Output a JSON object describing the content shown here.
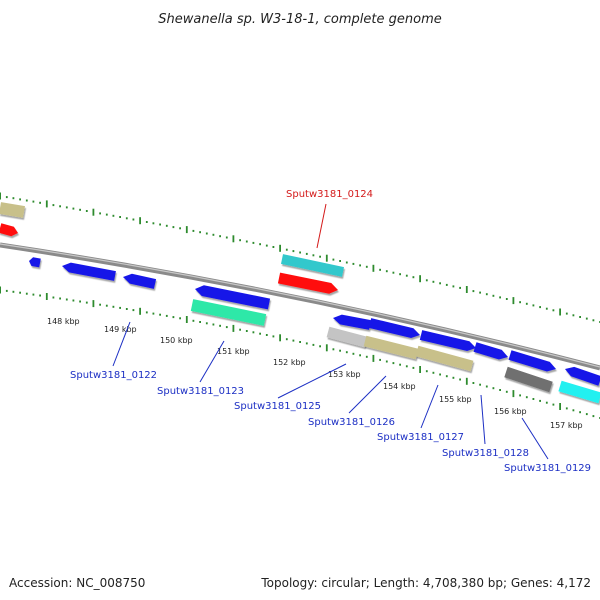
{
  "title": "Shewanella sp. W3-18-1, complete genome",
  "footer": {
    "accession": "Accession: NC_008750",
    "summary": "Topology: circular; Length: 4,708,380 bp; Genes: 4,172"
  },
  "ticks": [
    "148 kbp",
    "149 kbp",
    "150 kbp",
    "151 kbp",
    "152 kbp",
    "153 kbp",
    "154 kbp",
    "155 kbp",
    "156 kbp",
    "157 kbp"
  ],
  "colors": {
    "backbone": "#8a8a8a",
    "dots": "#2e8b2e",
    "label_blue": "#1c2fc4",
    "label_red": "#d41a1a",
    "gene_blue": "#1616e8",
    "gene_red": "#ff1010",
    "gene_tan": "#c8c08a",
    "gene_cyan": "#30c8cc",
    "gene_teal": "#2ee8a8",
    "gene_grey": "#c4c4c4",
    "gene_dark": "#707070",
    "gene_aqua": "#20f0f0"
  },
  "gene_labels": [
    {
      "text": "Sputw3181_0124",
      "color": "red"
    },
    {
      "text": "Sputw3181_0122",
      "color": "blue"
    },
    {
      "text": "Sputw3181_0123",
      "color": "blue"
    },
    {
      "text": "Sputw3181_0125",
      "color": "blue"
    },
    {
      "text": "Sputw3181_0126",
      "color": "blue"
    },
    {
      "text": "Sputw3181_0127",
      "color": "blue"
    },
    {
      "text": "Sputw3181_0128",
      "color": "blue"
    },
    {
      "text": "Sputw3181_0129",
      "color": "blue"
    }
  ]
}
